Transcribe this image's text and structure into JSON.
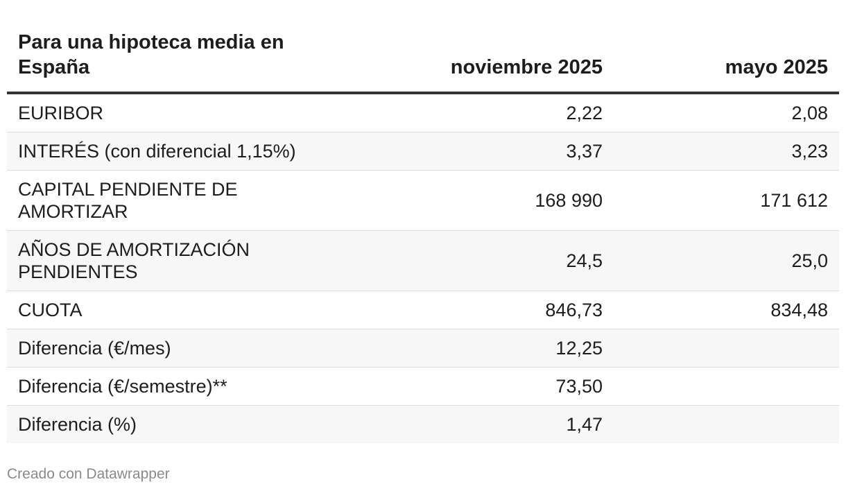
{
  "chart_data": {
    "type": "table",
    "columns": [
      "Para una hipoteca media en España",
      "noviembre 2025",
      "mayo 2025"
    ],
    "rows": [
      {
        "label": "EURIBOR",
        "nov_2025": "2,22",
        "may_2025": "2,08"
      },
      {
        "label": "INTERÉS (con diferencial 1,15%)",
        "nov_2025": "3,37",
        "may_2025": "3,23"
      },
      {
        "label": "CAPITAL PENDIENTE DE AMORTIZAR",
        "nov_2025": "168 990",
        "may_2025": "171 612"
      },
      {
        "label": "AÑOS DE AMORTIZACIÓN PENDIENTES",
        "nov_2025": "24,5",
        "may_2025": "25,0"
      },
      {
        "label": "CUOTA",
        "nov_2025": "846,73",
        "may_2025": "834,48"
      },
      {
        "label": "Diferencia (€/mes)",
        "nov_2025": "12,25",
        "may_2025": ""
      },
      {
        "label": "Diferencia (€/semestre)**",
        "nov_2025": "73,50",
        "may_2025": ""
      },
      {
        "label": "Diferencia (%)",
        "nov_2025": "1,47",
        "may_2025": ""
      }
    ]
  },
  "footer": {
    "credit": "Creado con Datawrapper"
  },
  "colors": {
    "text": "#1d1d1d",
    "header_rule": "#333333",
    "row_stripe": "#f7f7f7",
    "row_divider": "#dedede",
    "footer_text": "#8a8a8a"
  }
}
